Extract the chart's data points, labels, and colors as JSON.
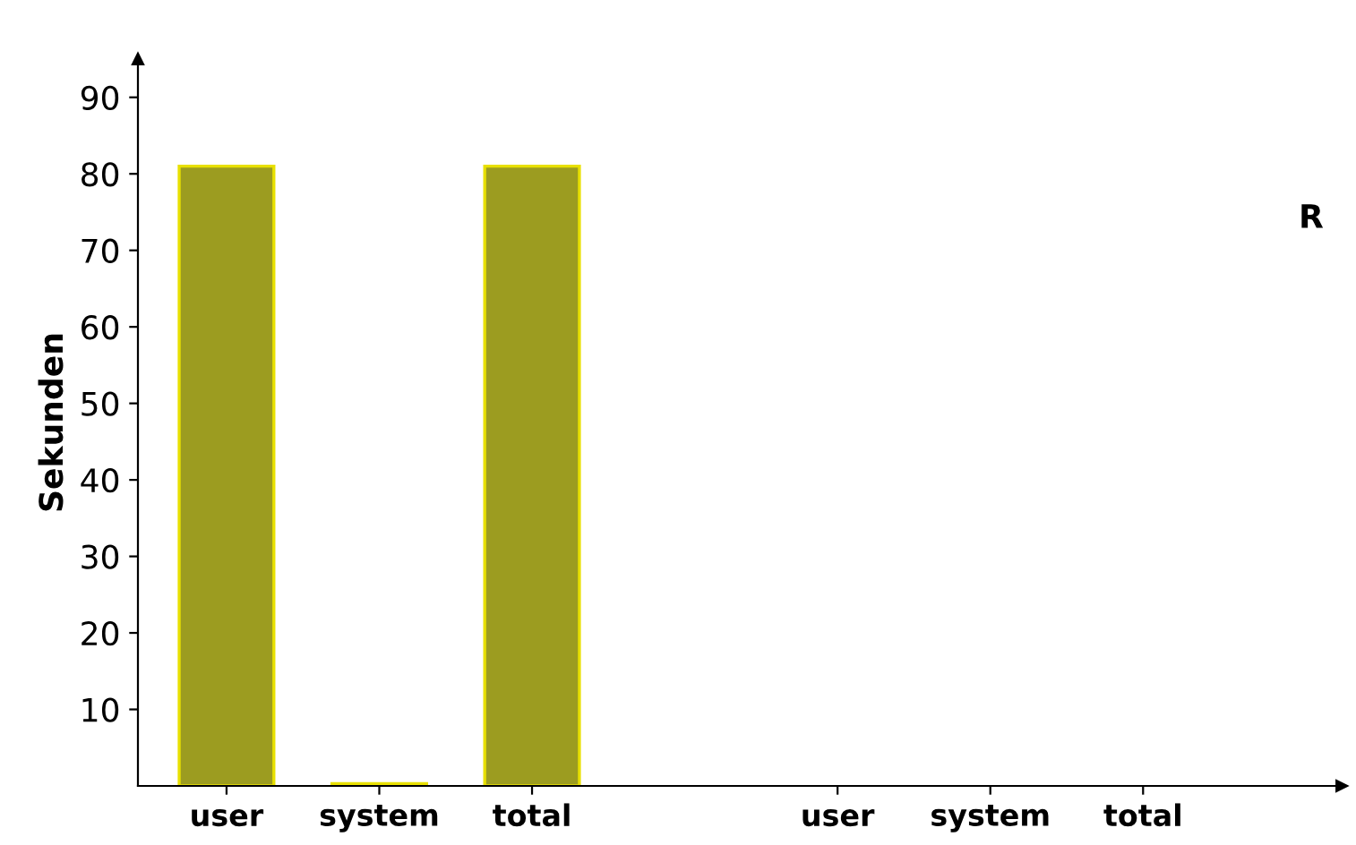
{
  "chart_data": {
    "type": "bar",
    "ylabel": "Sekunden",
    "categories": [
      "user",
      "system",
      "total",
      null,
      "user",
      "system",
      "total"
    ],
    "values": [
      81,
      0.3,
      81,
      null,
      null,
      null,
      null
    ],
    "color": "#9c9c20",
    "ylim": [
      0,
      95
    ],
    "yticks": [
      10,
      20,
      30,
      40,
      50,
      60,
      70,
      80,
      90
    ],
    "grid": false,
    "legend": false,
    "annotations": [
      "R"
    ]
  }
}
